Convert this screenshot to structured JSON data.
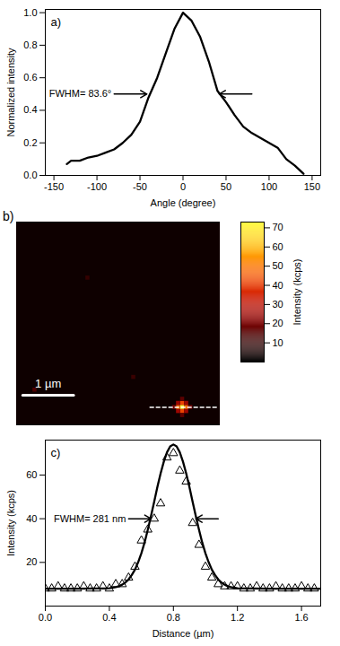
{
  "chart_data": [
    {
      "type": "line",
      "panel_label": "a)",
      "x": [
        -135,
        -130,
        -120,
        -110,
        -100,
        -90,
        -80,
        -70,
        -60,
        -50,
        -40,
        -30,
        -20,
        -10,
        0,
        10,
        20,
        30,
        40,
        50,
        60,
        70,
        80,
        90,
        100,
        110,
        120,
        130,
        140
      ],
      "values": [
        0.07,
        0.09,
        0.09,
        0.11,
        0.12,
        0.14,
        0.16,
        0.2,
        0.25,
        0.33,
        0.48,
        0.6,
        0.75,
        0.9,
        1.0,
        0.95,
        0.85,
        0.7,
        0.52,
        0.45,
        0.37,
        0.3,
        0.26,
        0.23,
        0.2,
        0.17,
        0.1,
        0.06,
        0.01
      ],
      "color": "#000000",
      "xlabel": "Angle (degree)",
      "ylabel": "Normalized intensity",
      "xlim": [
        -160,
        160
      ],
      "xticks": [
        -150,
        -100,
        -50,
        0,
        50,
        100,
        150
      ],
      "ylim": [
        0,
        1.02
      ],
      "yticks": [
        {
          "value": 0,
          "label": "0.0"
        },
        {
          "value": 0.2,
          "label": "0.2"
        },
        {
          "value": 0.4,
          "label": "0.4"
        },
        {
          "value": 0.6,
          "label": "0.6"
        },
        {
          "value": 0.8,
          "label": "0.8"
        },
        {
          "value": 1,
          "label": "1.0"
        }
      ],
      "annotations": [
        {
          "text": "FWHM= 83.6°",
          "arrows": [
            {
              "x1": -80,
              "x2": -42,
              "y": 0.5
            },
            {
              "x1": 80,
              "x2": 42,
              "y": 0.5
            }
          ]
        }
      ]
    },
    {
      "type": "heatmap",
      "panel_label": "b)",
      "xlim": [
        0,
        4
      ],
      "ylim": [
        0,
        4
      ],
      "tick_labels": false,
      "background": 3,
      "cell_size": 0.08,
      "cells": [
        {
          "x": 3.26,
          "y": 3.64,
          "value": 72
        },
        {
          "x": 3.18,
          "y": 3.64,
          "value": 48
        },
        {
          "x": 3.34,
          "y": 3.64,
          "value": 48
        },
        {
          "x": 3.26,
          "y": 3.56,
          "value": 42
        },
        {
          "x": 3.26,
          "y": 3.72,
          "value": 42
        },
        {
          "x": 3.18,
          "y": 3.56,
          "value": 25
        },
        {
          "x": 3.34,
          "y": 3.56,
          "value": 25
        },
        {
          "x": 3.18,
          "y": 3.72,
          "value": 25
        },
        {
          "x": 3.34,
          "y": 3.72,
          "value": 25
        },
        {
          "x": 3.1,
          "y": 3.64,
          "value": 18
        },
        {
          "x": 3.42,
          "y": 3.64,
          "value": 18
        },
        {
          "x": 3.26,
          "y": 3.48,
          "value": 16
        },
        {
          "x": 3.26,
          "y": 3.8,
          "value": 16
        },
        {
          "x": 0.36,
          "y": 3.3,
          "value": 14
        },
        {
          "x": 2.3,
          "y": 3.05,
          "value": 11
        },
        {
          "x": 1.4,
          "y": 1.1,
          "value": 10
        }
      ],
      "colorbar": {
        "label": "Intensity (kcps)",
        "lim": [
          0,
          73
        ],
        "ticks": [
          10,
          20,
          30,
          40,
          50,
          60,
          70
        ],
        "colors": [
          "#000000",
          "#3a0000",
          "#a00000",
          "#e02000",
          "#ff7000",
          "#ffc000",
          "#ffff40"
        ]
      },
      "profile": {
        "x": [
          2.62,
          3.95
        ],
        "y": 3.64,
        "color": "#ffffff",
        "line_style": "dashed"
      },
      "scale_bar": {
        "x": [
          0.12,
          1.12
        ],
        "y": 3.4,
        "label": "1 µm",
        "color": "#ffffff"
      }
    },
    {
      "type": "scatter",
      "panel_label": "c)",
      "xlabel": "Distance (µm)",
      "ylabel": "Intensity (kcps)",
      "xlim": [
        0,
        1.72
      ],
      "xticks": [
        {
          "value": 0,
          "label": "0.0"
        },
        {
          "value": 0.4,
          "label": "0.4"
        },
        {
          "value": 0.8,
          "label": "0.8"
        },
        {
          "value": 1.2,
          "label": "1.2"
        },
        {
          "value": 1.6,
          "label": "1.6"
        }
      ],
      "ylim": [
        0,
        76
      ],
      "yticks": [
        20,
        40,
        60
      ],
      "series": [
        {
          "type": "scatter",
          "marker": "triangle",
          "color": "#000000",
          "x": [
            0,
            0.04,
            0.08,
            0.12,
            0.16,
            0.2,
            0.24,
            0.28,
            0.32,
            0.36,
            0.4,
            0.44,
            0.48,
            0.52,
            0.56,
            0.6,
            0.64,
            0.68,
            0.72,
            0.76,
            0.8,
            0.84,
            0.88,
            0.92,
            0.96,
            1.0,
            1.04,
            1.08,
            1.12,
            1.16,
            1.2,
            1.24,
            1.28,
            1.32,
            1.36,
            1.4,
            1.44,
            1.48,
            1.52,
            1.56,
            1.6,
            1.64,
            1.68
          ],
          "values": [
            8,
            8,
            9,
            8,
            8,
            8,
            9,
            8,
            8,
            9,
            8,
            10,
            10,
            13,
            18,
            30,
            35,
            40,
            47,
            68,
            70,
            62,
            57,
            38,
            28,
            18,
            13,
            10,
            9,
            9,
            9,
            8,
            8,
            9,
            8,
            8,
            9,
            8,
            8,
            8,
            9,
            8,
            8
          ]
        },
        {
          "type": "line",
          "color": "#000000",
          "x": [
            0,
            0.2,
            0.4,
            0.44,
            0.46,
            0.48,
            0.5,
            0.52,
            0.54,
            0.56,
            0.58,
            0.6,
            0.62,
            0.64,
            0.66,
            0.68,
            0.7,
            0.72,
            0.74,
            0.76,
            0.78,
            0.8,
            0.82,
            0.84,
            0.86,
            0.88,
            0.9,
            0.92,
            0.94,
            0.96,
            0.98,
            1.0,
            1.02,
            1.04,
            1.06,
            1.08,
            1.1,
            1.12,
            1.14,
            1.16,
            1.2,
            1.4,
            1.72
          ],
          "values": [
            8,
            8,
            8.2,
            8.7,
            9.1,
            9.8,
            10.8,
            12.2,
            14.2,
            16.7,
            20.1,
            24.2,
            29.1,
            34.9,
            41.2,
            47.8,
            54.5,
            60.7,
            66.1,
            70.4,
            73.1,
            74,
            73.1,
            70.4,
            66.1,
            60.7,
            54.5,
            47.8,
            41.2,
            34.9,
            29.1,
            24.2,
            20.1,
            16.7,
            14.2,
            12.2,
            10.8,
            9.8,
            9.1,
            8.7,
            8.2,
            8,
            8
          ]
        }
      ],
      "annotations": [
        {
          "text": "FWHM= 281 nm",
          "arrows": [
            {
              "x1": 0.52,
              "x2": 0.66,
              "y": 40
            },
            {
              "x1": 1.08,
              "x2": 0.94,
              "y": 40
            }
          ]
        }
      ]
    }
  ]
}
